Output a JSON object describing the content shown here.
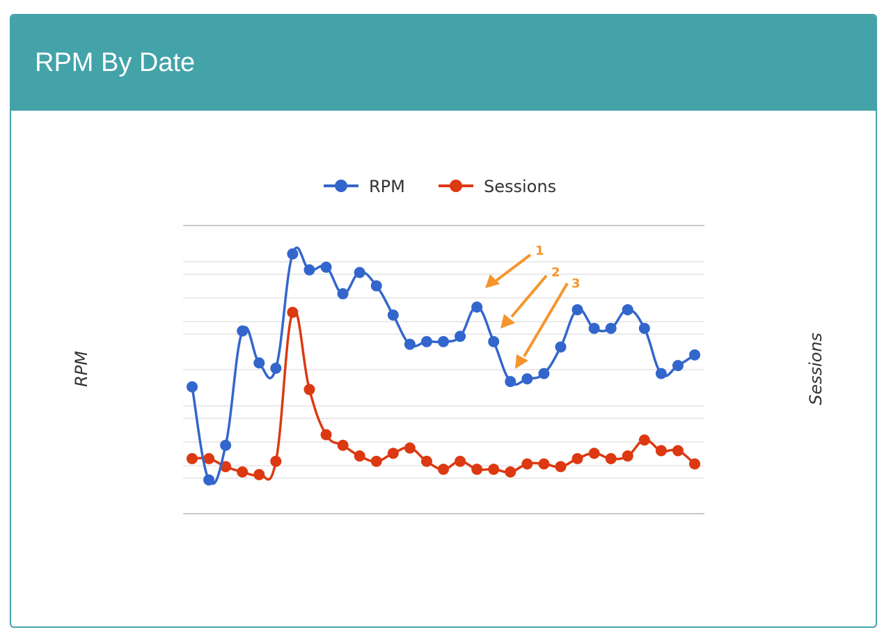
{
  "header": {
    "title": "RPM By Date"
  },
  "chart_data": {
    "type": "line",
    "title": "",
    "xlabel": "",
    "ylabel": "RPM",
    "y2label": "Sessions",
    "legend_position": "top-center",
    "grid": true,
    "smooth": true,
    "x": [
      1,
      2,
      3,
      4,
      5,
      6,
      7,
      8,
      9,
      10,
      11,
      12,
      13,
      14,
      15,
      16,
      17,
      18,
      19,
      20,
      21,
      22,
      23,
      24,
      25,
      26,
      27,
      28,
      29,
      30,
      31
    ],
    "ylim": [
      0,
      100
    ],
    "y2lim": [
      0,
      100
    ],
    "series": [
      {
        "name": "RPM",
        "axis": "left",
        "color": "#3366cc",
        "values": [
          43,
          8,
          21,
          64,
          52,
          50,
          93,
          87,
          88,
          78,
          86,
          81,
          70,
          59,
          60,
          60,
          62,
          73,
          60,
          45,
          46,
          48,
          58,
          72,
          65,
          65,
          72,
          65,
          48,
          51,
          55
        ]
      },
      {
        "name": "Sessions",
        "axis": "right",
        "color": "#dc3912",
        "values": [
          16,
          16,
          13,
          11,
          10,
          15,
          71,
          42,
          25,
          21,
          17,
          15,
          18,
          20,
          15,
          12,
          15,
          12,
          12,
          11,
          14,
          14,
          13,
          16,
          18,
          16,
          17,
          23,
          19,
          19,
          14
        ]
      }
    ],
    "annotations": [
      {
        "label": "1",
        "color": "#f5952c"
      },
      {
        "label": "2",
        "color": "#f5952c"
      },
      {
        "label": "3",
        "color": "#f5952c"
      }
    ]
  }
}
